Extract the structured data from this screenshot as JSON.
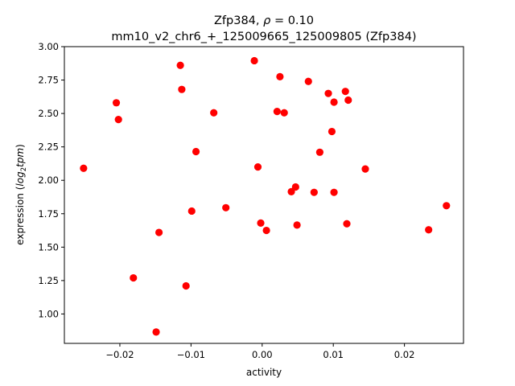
{
  "chart_data": {
    "type": "scatter",
    "title_line1_prefix": "Zfp384, ",
    "title_rho_symbol": "ρ",
    "title_rho_value": " = 0.10",
    "title_line2": "mm10_v2_chr6_+_125009665_125009805 (Zfp384)",
    "xlabel": "activity",
    "ylabel_prefix": "expression (",
    "ylabel_log": "log",
    "ylabel_sub": "2",
    "ylabel_tpm": "tpm",
    "ylabel_suffix": ")",
    "xlim": [
      -0.0278,
      0.0283
    ],
    "ylim": [
      0.78,
      3.0
    ],
    "x_ticks": [
      -0.02,
      -0.01,
      0.0,
      0.01,
      0.02
    ],
    "x_tick_labels": [
      "−0.02",
      "−0.01",
      "0.00",
      "0.01",
      "0.02"
    ],
    "y_ticks": [
      1.0,
      1.25,
      1.5,
      1.75,
      2.0,
      2.25,
      2.5,
      2.75,
      3.0
    ],
    "y_tick_labels": [
      "1.00",
      "1.25",
      "1.50",
      "1.75",
      "2.00",
      "2.25",
      "2.50",
      "2.75",
      "3.00"
    ],
    "marker_color": "#ff0000",
    "grid": false,
    "points": [
      {
        "x": -0.0251,
        "y": 2.09
      },
      {
        "x": -0.0205,
        "y": 2.58
      },
      {
        "x": -0.0202,
        "y": 2.455
      },
      {
        "x": -0.0181,
        "y": 1.27
      },
      {
        "x": -0.0149,
        "y": 0.865
      },
      {
        "x": -0.0145,
        "y": 1.61
      },
      {
        "x": -0.0115,
        "y": 2.86
      },
      {
        "x": -0.0113,
        "y": 2.68
      },
      {
        "x": -0.0107,
        "y": 1.21
      },
      {
        "x": -0.0099,
        "y": 1.77
      },
      {
        "x": -0.0093,
        "y": 2.215
      },
      {
        "x": -0.0068,
        "y": 2.505
      },
      {
        "x": -0.0051,
        "y": 1.795
      },
      {
        "x": -0.0011,
        "y": 2.895
      },
      {
        "x": -0.0006,
        "y": 2.1
      },
      {
        "x": -0.0002,
        "y": 1.68
      },
      {
        "x": 0.0006,
        "y": 1.625
      },
      {
        "x": 0.0021,
        "y": 2.515
      },
      {
        "x": 0.0025,
        "y": 2.775
      },
      {
        "x": 0.0031,
        "y": 2.505
      },
      {
        "x": 0.0041,
        "y": 1.915
      },
      {
        "x": 0.0047,
        "y": 1.95
      },
      {
        "x": 0.0049,
        "y": 1.665
      },
      {
        "x": 0.0065,
        "y": 2.74
      },
      {
        "x": 0.0073,
        "y": 1.91
      },
      {
        "x": 0.0081,
        "y": 2.21
      },
      {
        "x": 0.0093,
        "y": 2.65
      },
      {
        "x": 0.0098,
        "y": 2.365
      },
      {
        "x": 0.0101,
        "y": 2.585
      },
      {
        "x": 0.0101,
        "y": 1.91
      },
      {
        "x": 0.0117,
        "y": 2.665
      },
      {
        "x": 0.0119,
        "y": 1.675
      },
      {
        "x": 0.0121,
        "y": 2.6
      },
      {
        "x": 0.0145,
        "y": 2.085
      },
      {
        "x": 0.0234,
        "y": 1.63
      },
      {
        "x": 0.0259,
        "y": 1.81
      }
    ]
  }
}
